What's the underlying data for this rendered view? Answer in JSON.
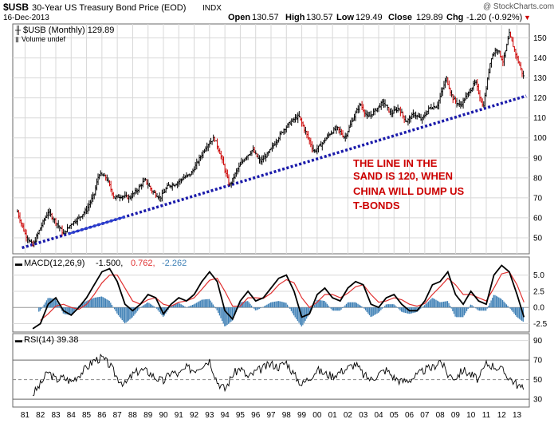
{
  "header": {
    "symbol": "$USB",
    "title": "30-Year US Treasury Bond Price (EOD)",
    "exchange": "INDX",
    "date": "16-Dec-2013",
    "ohlc": {
      "open_label": "Open",
      "open": "130.57",
      "high_label": "High",
      "high": "130.57",
      "low_label": "Low",
      "low": "129.49",
      "close_label": "Close",
      "close": "129.89",
      "chg_label": "Chg",
      "chg": "-1.20 (-0.92%)"
    },
    "watermark": "@ StockCharts.com"
  },
  "legend": {
    "price": "$USB (Monthly) 129.89",
    "volume": "Volume undef",
    "macd_prefix": "MACD(12,26,9)",
    "macd_value": "-1.500,",
    "signal_value": "0.762,",
    "hist_value": "-2.262",
    "rsi": "RSI(14) 39.38"
  },
  "annotation": [
    "THE LINE IN THE",
    "SAND IS 120, WHEN",
    "CHINA WILL DUMP US",
    "T-BONDS"
  ],
  "colors": {
    "price_bar": "#000000",
    "price_bar_down": "#cc0000",
    "trendline": "#1a1aaa",
    "macd_line": "#000000",
    "signal_line": "#e03030",
    "histogram": "#3d7fb5",
    "rsi_line": "#000000",
    "annotation": "#cc0000",
    "grid": "#d8d8d8"
  },
  "chart_data": [
    {
      "type": "line",
      "title": "$USB (Monthly)",
      "x_tick_labels": [
        "81",
        "82",
        "83",
        "84",
        "85",
        "86",
        "87",
        "88",
        "89",
        "90",
        "91",
        "92",
        "93",
        "94",
        "95",
        "96",
        "97",
        "98",
        "99",
        "00",
        "01",
        "02",
        "03",
        "04",
        "05",
        "06",
        "07",
        "08",
        "09",
        "10",
        "11",
        "12",
        "13"
      ],
      "y_tick_labels": [
        "50",
        "60",
        "70",
        "80",
        "90",
        "100",
        "110",
        "120",
        "130",
        "140",
        "150"
      ],
      "ylim": [
        42,
        157
      ],
      "grid": true,
      "series": [
        {
          "x": [
            1981.0,
            1981.5,
            1982.0,
            1982.5,
            1983.0,
            1983.5,
            1984.0,
            1984.5,
            1985.0,
            1985.5,
            1986.0,
            1986.3,
            1986.8,
            1987.3,
            1987.8,
            1988.3,
            1988.8,
            1989.3,
            1989.8,
            1990.3,
            1990.8,
            1991.3,
            1991.8,
            1992.3,
            1992.8,
            1993.3,
            1993.8,
            1994.2,
            1994.8,
            1995.3,
            1995.8,
            1996.3,
            1996.8,
            1997.3,
            1997.8,
            1998.3,
            1998.8,
            1999.3,
            1999.8,
            2000.3,
            2000.8,
            2001.3,
            2001.8,
            2002.3,
            2002.8,
            2003.3,
            2003.8,
            2004.3,
            2004.8,
            2005.3,
            2005.8,
            2006.3,
            2006.8,
            2007.3,
            2007.8,
            2008.3,
            2008.9,
            2009.3,
            2009.8,
            2010.3,
            2010.8,
            2011.3,
            2011.8,
            2012.2,
            2012.6,
            2013.0,
            2013.5,
            2013.95
          ],
          "values": [
            63,
            52,
            46,
            55,
            63,
            58,
            52,
            57,
            60,
            64,
            72,
            82,
            80,
            70,
            71,
            70,
            74,
            79,
            73,
            70,
            76,
            77,
            80,
            82,
            89,
            96,
            100,
            92,
            76,
            84,
            90,
            94,
            88,
            92,
            98,
            104,
            108,
            111,
            102,
            93,
            97,
            102,
            105,
            100,
            109,
            117,
            110,
            114,
            118,
            112,
            115,
            108,
            112,
            109,
            115,
            116,
            130,
            120,
            116,
            122,
            128,
            115,
            140,
            145,
            138,
            152,
            140,
            130
          ]
        }
      ],
      "trendline": {
        "name": "",
        "x": [
          1981.3,
          2014.1
        ],
        "values": [
          45,
          121
        ]
      }
    },
    {
      "type": "line",
      "title": "MACD(12,26,9)",
      "x_tick_labels": [
        "81",
        "82",
        "83",
        "84",
        "85",
        "86",
        "87",
        "88",
        "89",
        "90",
        "91",
        "92",
        "93",
        "94",
        "95",
        "96",
        "97",
        "98",
        "99",
        "00",
        "01",
        "02",
        "03",
        "04",
        "05",
        "06",
        "07",
        "08",
        "09",
        "10",
        "11",
        "12",
        "13"
      ],
      "y_tick_labels": [
        "-2.5",
        "0.0",
        "2.5",
        "5.0"
      ],
      "ylim": [
        -3.8,
        7.8
      ],
      "series": [
        {
          "name": "MACD",
          "x": [
            1982.0,
            1982.5,
            1983.0,
            1983.5,
            1984.0,
            1984.5,
            1985.0,
            1985.5,
            1986.0,
            1986.5,
            1987.0,
            1987.5,
            1988.0,
            1988.5,
            1989.0,
            1989.5,
            1990.0,
            1990.5,
            1991.0,
            1991.5,
            1992.0,
            1992.5,
            1993.0,
            1993.5,
            1994.0,
            1994.5,
            1995.0,
            1995.5,
            1996.0,
            1996.5,
            1997.0,
            1997.5,
            1998.0,
            1998.5,
            1999.0,
            1999.5,
            2000.0,
            2000.5,
            2001.0,
            2001.5,
            2002.0,
            2002.5,
            2003.0,
            2003.5,
            2004.0,
            2004.5,
            2005.0,
            2005.5,
            2006.0,
            2006.5,
            2007.0,
            2007.5,
            2008.0,
            2008.5,
            2009.0,
            2009.5,
            2010.0,
            2010.5,
            2011.0,
            2011.5,
            2012.0,
            2012.5,
            2013.0,
            2013.5,
            2013.95
          ],
          "values": [
            -3.3,
            -2.5,
            0.5,
            1.5,
            -0.5,
            -1.2,
            0.0,
            1.5,
            3.5,
            5.5,
            6.0,
            4.0,
            0.5,
            -0.5,
            0.5,
            2.0,
            1.5,
            -1.0,
            0.5,
            1.5,
            1.0,
            2.0,
            4.0,
            5.5,
            4.0,
            -0.5,
            -1.8,
            1.0,
            2.5,
            1.0,
            1.5,
            3.0,
            4.5,
            5.0,
            2.5,
            -1.5,
            -1.0,
            2.0,
            3.0,
            1.5,
            1.0,
            3.0,
            4.0,
            3.5,
            0.5,
            0.0,
            1.5,
            2.0,
            0.5,
            -0.5,
            -0.5,
            1.0,
            3.5,
            4.0,
            5.5,
            2.0,
            0.5,
            2.5,
            1.0,
            0.5,
            5.0,
            6.5,
            5.5,
            2.0,
            -1.5
          ]
        },
        {
          "name": "Signal",
          "x": [
            1982.5,
            1983.0,
            1983.5,
            1984.0,
            1984.5,
            1985.0,
            1985.5,
            1986.0,
            1986.5,
            1987.0,
            1987.5,
            1988.0,
            1988.5,
            1989.0,
            1989.5,
            1990.0,
            1990.5,
            1991.0,
            1991.5,
            1992.0,
            1992.5,
            1993.0,
            1993.5,
            1994.0,
            1994.5,
            1995.0,
            1995.5,
            1996.0,
            1996.5,
            1997.0,
            1997.5,
            1998.0,
            1998.5,
            1999.0,
            1999.5,
            2000.0,
            2000.5,
            2001.0,
            2001.5,
            2002.0,
            2002.5,
            2003.0,
            2003.5,
            2004.0,
            2004.5,
            2005.0,
            2005.5,
            2006.0,
            2006.5,
            2007.0,
            2007.5,
            2008.0,
            2008.5,
            2009.0,
            2009.5,
            2010.0,
            2010.5,
            2011.0,
            2011.5,
            2012.0,
            2012.5,
            2013.0,
            2013.5,
            2013.95
          ],
          "values": [
            -2.0,
            -1.0,
            0.2,
            0.5,
            0.0,
            -0.3,
            0.5,
            2.0,
            3.8,
            5.0,
            5.0,
            3.0,
            1.0,
            0.5,
            1.2,
            1.5,
            0.5,
            0.2,
            0.8,
            1.0,
            1.5,
            2.8,
            4.2,
            4.5,
            2.5,
            0.2,
            0.2,
            1.5,
            1.5,
            1.4,
            2.2,
            3.5,
            4.3,
            3.8,
            1.5,
            0.0,
            0.8,
            2.0,
            2.0,
            1.5,
            2.2,
            3.2,
            3.5,
            2.0,
            0.8,
            1.0,
            1.5,
            1.2,
            0.5,
            0.2,
            0.6,
            2.0,
            3.2,
            4.5,
            3.5,
            2.0,
            2.0,
            1.5,
            1.0,
            3.0,
            5.2,
            5.5,
            3.5,
            0.8
          ]
        }
      ]
    },
    {
      "type": "line",
      "title": "RSI(14)",
      "x_tick_labels": [
        "81",
        "82",
        "83",
        "84",
        "85",
        "86",
        "87",
        "88",
        "89",
        "90",
        "91",
        "92",
        "93",
        "94",
        "95",
        "96",
        "97",
        "98",
        "99",
        "00",
        "01",
        "02",
        "03",
        "04",
        "05",
        "06",
        "07",
        "08",
        "09",
        "10",
        "11",
        "12",
        "13"
      ],
      "y_tick_labels": [
        "30",
        "50",
        "70",
        "90"
      ],
      "ylim": [
        22,
        97
      ],
      "series": [
        {
          "name": "RSI",
          "x": [
            1982.0,
            1982.5,
            1983.0,
            1983.5,
            1984.0,
            1984.5,
            1985.0,
            1985.5,
            1986.0,
            1986.5,
            1987.0,
            1987.5,
            1988.0,
            1988.5,
            1989.0,
            1989.5,
            1990.0,
            1990.5,
            1991.0,
            1991.5,
            1992.0,
            1992.5,
            1993.0,
            1993.5,
            1994.0,
            1994.5,
            1995.0,
            1995.5,
            1996.0,
            1996.5,
            1997.0,
            1997.5,
            1998.0,
            1998.5,
            1999.0,
            1999.5,
            2000.0,
            2000.5,
            2001.0,
            2001.5,
            2002.0,
            2002.5,
            2003.0,
            2003.5,
            2004.0,
            2004.5,
            2005.0,
            2005.5,
            2006.0,
            2006.5,
            2007.0,
            2007.5,
            2008.0,
            2008.5,
            2009.0,
            2009.5,
            2010.0,
            2010.5,
            2011.0,
            2011.5,
            2012.0,
            2012.5,
            2013.0,
            2013.5,
            2013.95
          ],
          "values": [
            35,
            45,
            58,
            50,
            52,
            48,
            55,
            62,
            70,
            72,
            65,
            52,
            45,
            55,
            60,
            58,
            52,
            48,
            58,
            55,
            62,
            60,
            65,
            70,
            48,
            40,
            55,
            62,
            52,
            58,
            62,
            66,
            63,
            68,
            55,
            45,
            52,
            60,
            56,
            54,
            58,
            62,
            66,
            55,
            50,
            56,
            60,
            52,
            48,
            50,
            54,
            60,
            62,
            70,
            55,
            52,
            60,
            55,
            50,
            66,
            64,
            60,
            52,
            45,
            39
          ]
        }
      ]
    }
  ]
}
